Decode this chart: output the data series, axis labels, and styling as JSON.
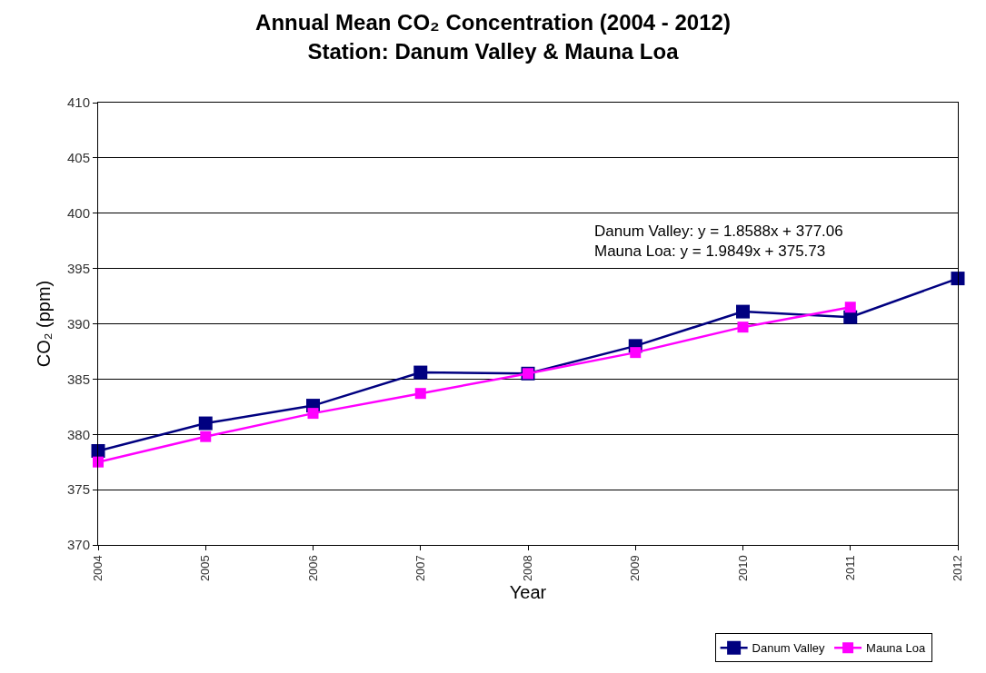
{
  "chart_data": {
    "type": "line",
    "title": "Annual Mean CO₂ Concentration (2004 - 2012)",
    "subtitle": "Station: Danum Valley & Mauna Loa",
    "xlabel": "Year",
    "ylabel": "CO₂ (ppm)",
    "x": [
      2004,
      2005,
      2006,
      2007,
      2008,
      2009,
      2010,
      2011,
      2012
    ],
    "series": [
      {
        "name": "Danum Valley",
        "color": "#000080",
        "values": [
          378.5,
          381.0,
          382.6,
          385.6,
          385.5,
          388.0,
          391.1,
          390.6,
          394.1
        ]
      },
      {
        "name": "Mauna Loa",
        "color": "#ff00ff",
        "values": [
          377.5,
          379.8,
          381.9,
          383.7,
          385.5,
          387.4,
          389.7,
          391.5,
          null
        ]
      }
    ],
    "xlim": [
      2004,
      2012
    ],
    "xticks": [
      2004,
      2005,
      2006,
      2007,
      2008,
      2009,
      2010,
      2011,
      2012
    ],
    "ylim": [
      370,
      410
    ],
    "yticks": [
      370,
      375,
      380,
      385,
      390,
      395,
      400,
      405,
      410
    ],
    "annotations": [
      "Danum Valley: y = 1.8588x + 377.06",
      "Mauna Loa: y = 1.9849x + 375.73"
    ],
    "grid": "y",
    "legend": "bottom right",
    "marker": "square",
    "line_style": "solid"
  }
}
